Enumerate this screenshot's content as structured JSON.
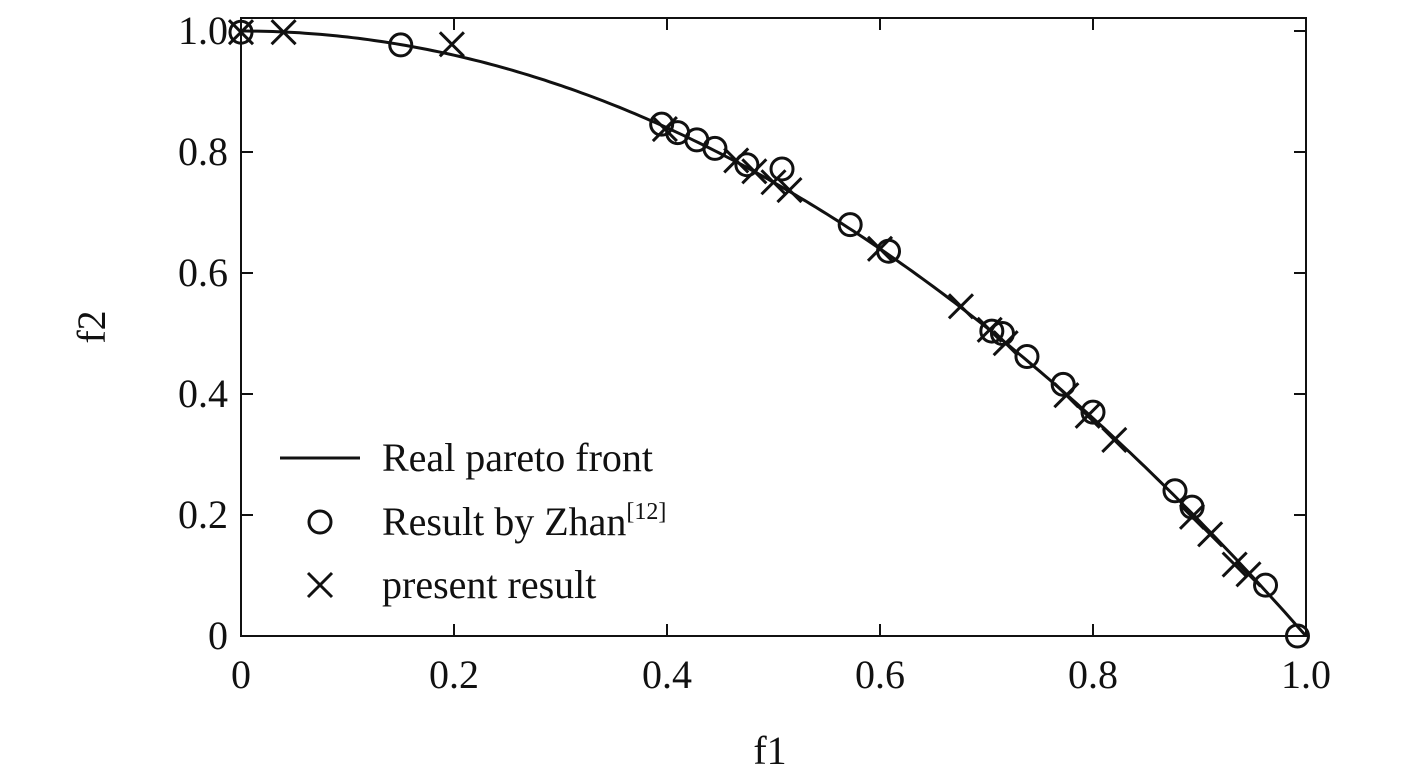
{
  "chart_data": {
    "type": "scatter",
    "xlabel": "f1",
    "ylabel": "f2",
    "xlim": [
      0,
      1.0
    ],
    "ylim": [
      0,
      1.0
    ],
    "x_ticks": [
      "0",
      "0.2",
      "0.4",
      "0.6",
      "0.8",
      "1.0"
    ],
    "y_ticks": [
      "0",
      "0.2",
      "0.4",
      "0.6",
      "0.8",
      "1.0"
    ],
    "grid": false,
    "legend_position": "bottom-left",
    "legend": [
      {
        "label": "Real pareto front",
        "label_sup": "",
        "marker": "line"
      },
      {
        "label": "Result by Zhan",
        "label_sup": "[12]",
        "marker": "circle"
      },
      {
        "label": "present result",
        "label_sup": "",
        "marker": "x"
      }
    ],
    "series": [
      {
        "name": "Real pareto front",
        "kind": "line",
        "function": "f2 = 1 - f1^2"
      },
      {
        "name": "Result by Zhan[12]",
        "kind": "circle",
        "points": [
          [
            0.0,
            0.998
          ],
          [
            0.15,
            0.977
          ],
          [
            0.395,
            0.846
          ],
          [
            0.41,
            0.832
          ],
          [
            0.428,
            0.82
          ],
          [
            0.445,
            0.806
          ],
          [
            0.475,
            0.779
          ],
          [
            0.508,
            0.772
          ],
          [
            0.572,
            0.68
          ],
          [
            0.608,
            0.636
          ],
          [
            0.705,
            0.504
          ],
          [
            0.715,
            0.5
          ],
          [
            0.738,
            0.462
          ],
          [
            0.772,
            0.416
          ],
          [
            0.8,
            0.37
          ],
          [
            0.877,
            0.24
          ],
          [
            0.893,
            0.213
          ],
          [
            0.962,
            0.084
          ],
          [
            0.992,
            0.0
          ]
        ]
      },
      {
        "name": "present result",
        "kind": "x",
        "points": [
          [
            0.0,
            0.998
          ],
          [
            0.04,
            0.998
          ],
          [
            0.198,
            0.978
          ],
          [
            0.398,
            0.838
          ],
          [
            0.465,
            0.786
          ],
          [
            0.482,
            0.768
          ],
          [
            0.5,
            0.75
          ],
          [
            0.515,
            0.737
          ],
          [
            0.6,
            0.64
          ],
          [
            0.676,
            0.545
          ],
          [
            0.703,
            0.506
          ],
          [
            0.718,
            0.484
          ],
          [
            0.775,
            0.398
          ],
          [
            0.795,
            0.364
          ],
          [
            0.82,
            0.324
          ],
          [
            0.893,
            0.197
          ],
          [
            0.91,
            0.168
          ],
          [
            0.933,
            0.118
          ],
          [
            0.946,
            0.102
          ]
        ]
      }
    ]
  }
}
